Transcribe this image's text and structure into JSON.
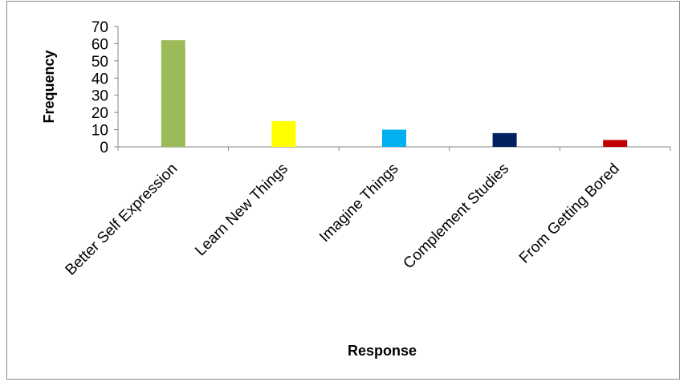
{
  "chart_data": {
    "type": "bar",
    "categories": [
      "Better Self Expression",
      "Learn New Things",
      "Imagine Things",
      "Complement Studies",
      "From Getting Bored"
    ],
    "values": [
      62,
      15,
      10,
      8,
      4
    ],
    "colors": [
      "#9bbb59",
      "#ffff00",
      "#00b0f0",
      "#002060",
      "#c00000"
    ],
    "xlabel": "Response",
    "ylabel": "Frequency",
    "ylim": [
      0,
      70
    ],
    "yticks": [
      0,
      10,
      20,
      30,
      40,
      50,
      60,
      70
    ],
    "grid": false,
    "legend": "none"
  }
}
